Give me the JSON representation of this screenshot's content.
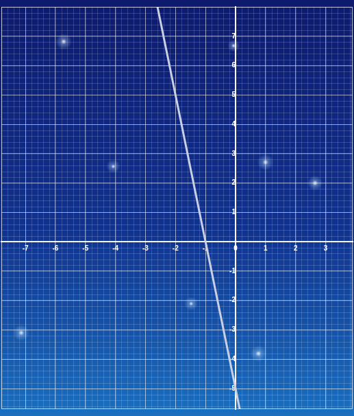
{
  "chart_data": {
    "type": "line",
    "x": [
      -2.6,
      0.14
    ],
    "values": [
      8,
      -5.7
    ],
    "color": "#c9d0e3",
    "xlim": [
      -7.8,
      3.9
    ],
    "ylim": [
      -5.7,
      8
    ],
    "xticks": [
      -7,
      -6,
      -5,
      -4,
      -3,
      -2,
      -1,
      0,
      1,
      2,
      3
    ],
    "yticks": [
      -5,
      -4,
      -3,
      -2,
      -1,
      1,
      2,
      3,
      4,
      5,
      6,
      7
    ],
    "grid": true
  }
}
